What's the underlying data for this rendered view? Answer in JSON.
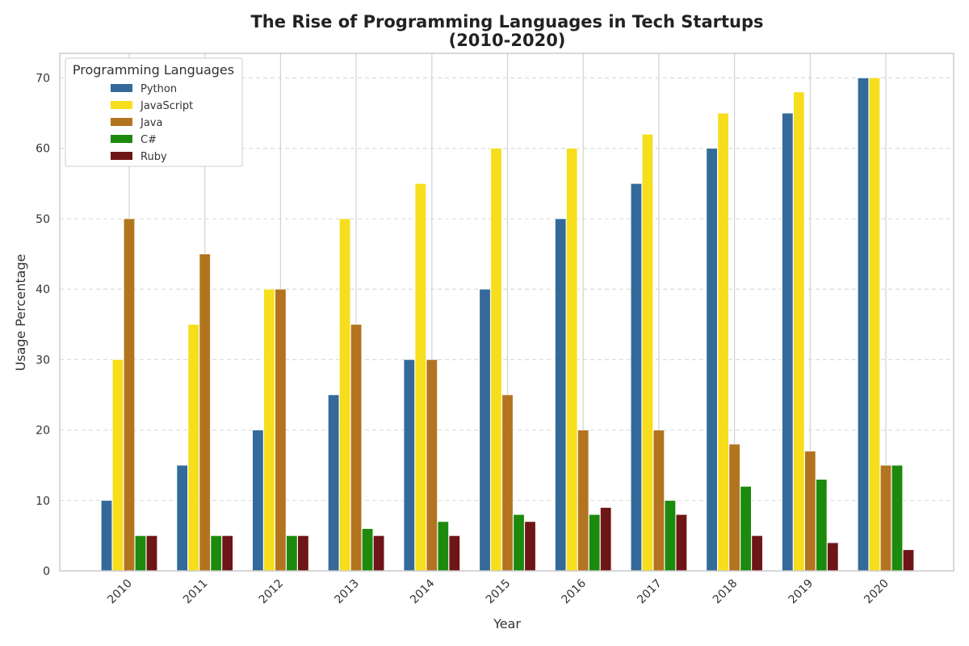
{
  "chart_data": {
    "type": "bar",
    "title": "The Rise of Programming Languages in Tech Startups",
    "subtitle": "(2010-2020)",
    "xlabel": "Year",
    "ylabel": "Usage Percentage",
    "categories": [
      "2010",
      "2011",
      "2012",
      "2013",
      "2014",
      "2015",
      "2016",
      "2017",
      "2018",
      "2019",
      "2020"
    ],
    "ylim": [
      0,
      73.5
    ],
    "yticks": [
      0,
      10,
      20,
      30,
      40,
      50,
      60,
      70
    ],
    "grid": true,
    "legend": {
      "title": "Programming Languages",
      "placement": "top-left"
    },
    "series": [
      {
        "name": "Python",
        "color": "#336a9a",
        "values": [
          10,
          15,
          20,
          25,
          30,
          40,
          50,
          55,
          60,
          65,
          70
        ]
      },
      {
        "name": "JavaScript",
        "color": "#f6de1c",
        "values": [
          30,
          35,
          40,
          50,
          55,
          60,
          60,
          62,
          65,
          68,
          70
        ]
      },
      {
        "name": "Java",
        "color": "#b3741f",
        "values": [
          50,
          45,
          40,
          35,
          30,
          25,
          20,
          20,
          18,
          17,
          15
        ]
      },
      {
        "name": "C#",
        "color": "#1c8a0c",
        "values": [
          5,
          5,
          5,
          6,
          7,
          8,
          8,
          10,
          12,
          13,
          15
        ]
      },
      {
        "name": "Ruby",
        "color": "#6e1517",
        "values": [
          5,
          5,
          5,
          5,
          5,
          7,
          9,
          8,
          5,
          4,
          3
        ]
      }
    ]
  }
}
